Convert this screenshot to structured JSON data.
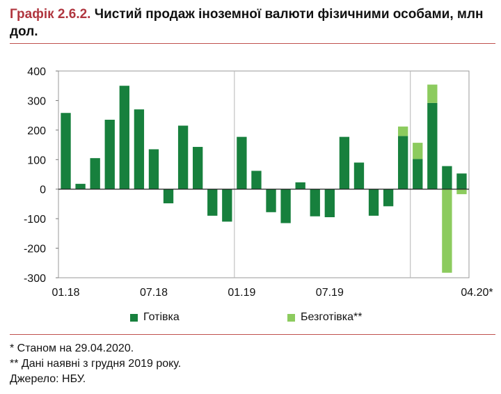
{
  "title": {
    "prefix": "Графік 2.6.2.",
    "text": "Чистий продаж іноземної валюти фізичними особами, млн дол."
  },
  "colors": {
    "cash": "#17803d",
    "noncash": "#8ccb5e",
    "accent": "#c0504d"
  },
  "chart_data": {
    "type": "bar",
    "stacked": true,
    "categories": [
      "01.18",
      "02.18",
      "03.18",
      "04.18",
      "05.18",
      "06.18",
      "07.18",
      "08.18",
      "09.18",
      "10.18",
      "11.18",
      "12.18",
      "01.19",
      "02.19",
      "03.19",
      "04.19",
      "05.19",
      "06.19",
      "07.19",
      "08.19",
      "09.19",
      "10.19",
      "11.19",
      "12.19",
      "01.20",
      "02.20",
      "03.20",
      "04.20*"
    ],
    "tick_labels": [
      {
        "index": 0,
        "label": "01.18"
      },
      {
        "index": 6,
        "label": "07.18"
      },
      {
        "index": 12,
        "label": "01.19"
      },
      {
        "index": 18,
        "label": "07.19"
      },
      {
        "index": 27,
        "label": "04.20*"
      }
    ],
    "series": [
      {
        "name": "Готівка",
        "values": [
          258,
          18,
          105,
          235,
          350,
          270,
          135,
          -48,
          215,
          143,
          -90,
          -110,
          177,
          62,
          -78,
          -115,
          23,
          -92,
          -95,
          177,
          90,
          -90,
          -58,
          180,
          102,
          292,
          78,
          53
        ]
      },
      {
        "name": "Безготівка**",
        "values": [
          0,
          0,
          0,
          0,
          0,
          0,
          0,
          0,
          0,
          0,
          0,
          0,
          0,
          0,
          0,
          0,
          0,
          0,
          0,
          0,
          0,
          0,
          0,
          32,
          55,
          62,
          -283,
          -17
        ]
      }
    ],
    "ylim": [
      -300,
      400
    ],
    "yticks": [
      -300,
      -200,
      -100,
      0,
      100,
      200,
      300,
      400
    ],
    "vertical_gridlines_at": [
      12,
      24
    ],
    "legend_position": "bottom"
  },
  "notes": [
    "* Станом на 29.04.2020.",
    "** Дані наявні з грудня 2019 року.",
    "Джерело: НБУ."
  ]
}
